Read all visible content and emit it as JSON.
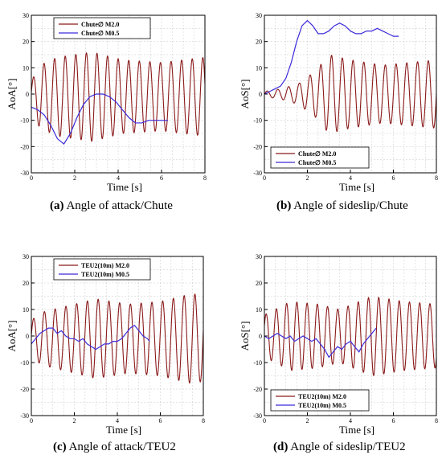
{
  "colors": {
    "red_series": "#8b1a1a",
    "blue_series": "#3b2bd9",
    "green_overlay": "#1a9a1a",
    "grid": "#c8c8c8",
    "axis": "#000000"
  },
  "chart_data": [
    {
      "id": "a",
      "type": "line",
      "caption_letter": "(a)",
      "caption_text": "Angle of attack/Chute",
      "xlabel": "Time [s]",
      "ylabel": "AoA[°]",
      "xlim": [
        0,
        8
      ],
      "ylim": [
        -30,
        30
      ],
      "xticks": [
        0,
        2,
        4,
        6,
        8
      ],
      "yticks": [
        -30,
        -20,
        -10,
        0,
        10,
        20,
        30
      ],
      "grid": true,
      "legend_position": "top-left",
      "series": [
        {
          "name": "Chute∅ M2.0",
          "color": "#8b1a1a",
          "kind": "oscillation",
          "t_end": 8.0,
          "freq": 2.05,
          "amp": [
            [
              0,
              6
            ],
            [
              0.4,
              12
            ],
            [
              1.2,
              15
            ],
            [
              2.8,
              17
            ],
            [
              4.2,
              14
            ],
            [
              6,
              13
            ],
            [
              8,
              15
            ]
          ],
          "offset": [
            [
              0,
              -1
            ],
            [
              8,
              -1
            ]
          ],
          "phase": 0.3
        },
        {
          "name": "Chute∅ M0.5",
          "color": "#3b2bd9",
          "kind": "points",
          "x": [
            0,
            0.3,
            0.6,
            0.9,
            1.2,
            1.5,
            1.8,
            2.1,
            2.4,
            2.7,
            3.0,
            3.3,
            3.6,
            3.9,
            4.2,
            4.5,
            4.8,
            5.1,
            5.4,
            5.7,
            6.0,
            6.3
          ],
          "y": [
            -5,
            -6,
            -8,
            -12,
            -17,
            -19,
            -15,
            -9,
            -4,
            -1,
            0,
            0,
            -1,
            -3,
            -6,
            -9,
            -11,
            -11,
            -10,
            -10,
            -10,
            -10
          ]
        }
      ]
    },
    {
      "id": "b",
      "type": "line",
      "caption_letter": "(b)",
      "caption_text": "Angle of sideslip/Chute",
      "xlabel": "Time [s]",
      "ylabel": "AoS[°]",
      "xlim": [
        0,
        8
      ],
      "ylim": [
        -30,
        30
      ],
      "xticks": [
        0,
        2,
        4,
        6,
        8
      ],
      "yticks": [
        -30,
        -20,
        -10,
        0,
        10,
        20,
        30
      ],
      "grid": true,
      "legend_position": "bottom-left",
      "series": [
        {
          "name": "Chute∅ M2.0",
          "color": "#8b1a1a",
          "kind": "oscillation",
          "t_end": 8.0,
          "freq": 2.0,
          "amp": [
            [
              0,
              1
            ],
            [
              0.8,
              2
            ],
            [
              1.6,
              4
            ],
            [
              2.4,
              9
            ],
            [
              3.0,
              15
            ],
            [
              4.0,
              13
            ],
            [
              5.5,
              11
            ],
            [
              8,
              13
            ]
          ],
          "offset": [
            [
              0,
              0
            ],
            [
              8,
              0
            ]
          ],
          "phase": 0.0
        },
        {
          "name": "Chute∅ M0.5",
          "color": "#3b2bd9",
          "kind": "points",
          "x": [
            0,
            0.25,
            0.5,
            0.75,
            1.0,
            1.25,
            1.5,
            1.75,
            2.0,
            2.25,
            2.5,
            2.75,
            3.0,
            3.25,
            3.5,
            3.75,
            4.0,
            4.25,
            4.5,
            4.75,
            5.0,
            5.25,
            5.5,
            5.75,
            6.0,
            6.25
          ],
          "y": [
            0,
            1,
            2,
            3,
            6,
            12,
            20,
            26,
            28,
            26,
            23,
            23,
            24,
            26,
            27,
            26,
            24,
            23,
            23,
            24,
            24,
            25,
            24,
            23,
            22,
            22
          ]
        }
      ]
    },
    {
      "id": "c",
      "type": "line",
      "caption_letter": "(c)",
      "caption_text": "Angle of attack/TEU2",
      "xlabel": "Time [s]",
      "ylabel": "AoA[°]",
      "xlim": [
        0,
        8
      ],
      "ylim": [
        -30,
        30
      ],
      "xticks": [
        0,
        2,
        4,
        6,
        8
      ],
      "yticks": [
        -30,
        -20,
        -10,
        0,
        10,
        20,
        30
      ],
      "grid": true,
      "legend_position": "top-left",
      "series": [
        {
          "name": "TEU2(10m) M2.0",
          "color": "#8b1a1a",
          "kind": "oscillation",
          "t_end": 8.0,
          "freq": 2.0,
          "amp": [
            [
              0,
              7
            ],
            [
              0.5,
              10
            ],
            [
              1.5,
              12
            ],
            [
              3,
              15
            ],
            [
              4.5,
              13
            ],
            [
              6,
              14
            ],
            [
              7.5,
              17
            ],
            [
              8,
              16
            ]
          ],
          "offset": [
            [
              0,
              -1
            ],
            [
              8,
              -1
            ]
          ],
          "phase": 0.2
        },
        {
          "name": "TEU2(10m) M0.5",
          "color": "#3b2bd9",
          "kind": "points",
          "x": [
            0,
            0.2,
            0.4,
            0.6,
            0.8,
            1.0,
            1.2,
            1.4,
            1.6,
            1.8,
            2.0,
            2.2,
            2.4,
            2.6,
            2.8,
            3.0,
            3.2,
            3.4,
            3.6,
            3.8,
            4.0,
            4.2,
            4.4,
            4.6,
            4.8,
            5.0,
            5.2,
            5.4,
            5.5
          ],
          "y": [
            -3,
            -1,
            1,
            2,
            3,
            3,
            1,
            2,
            0,
            -1,
            -1,
            -2,
            -1,
            -3,
            -4,
            -5,
            -4,
            -3,
            -3,
            -2,
            -2,
            -1,
            1,
            3,
            4,
            2,
            0,
            -1,
            -2
          ]
        }
      ]
    },
    {
      "id": "d",
      "type": "line",
      "caption_letter": "(d)",
      "caption_text": "Angle of sideslip/TEU2",
      "xlabel": "Time [s]",
      "ylabel": "AoS[°]",
      "xlim": [
        0,
        8
      ],
      "ylim": [
        -30,
        30
      ],
      "xticks": [
        0,
        2,
        4,
        6,
        8
      ],
      "yticks": [
        -30,
        -20,
        -10,
        0,
        10,
        20,
        30
      ],
      "grid": true,
      "legend_position": "bottom-left",
      "series": [
        {
          "name": "TEU2(10m) M2.0",
          "color": "#8b1a1a",
          "kind": "oscillation",
          "t_end": 8.0,
          "freq": 2.1,
          "amp": [
            [
              0,
              8
            ],
            [
              0.5,
              10
            ],
            [
              1.2,
              13
            ],
            [
              2.5,
              12
            ],
            [
              3.5,
              10
            ],
            [
              5.0,
              15
            ],
            [
              6.5,
              13
            ],
            [
              8,
              12
            ]
          ],
          "offset": [
            [
              0,
              0
            ],
            [
              8,
              0
            ]
          ],
          "phase": 0.5
        },
        {
          "name": "TEU2(10m) M0.5",
          "color": "#3b2bd9",
          "kind": "points",
          "x": [
            0,
            0.2,
            0.4,
            0.6,
            0.8,
            1.0,
            1.2,
            1.4,
            1.6,
            1.8,
            2.0,
            2.2,
            2.4,
            2.6,
            2.8,
            3.0,
            3.2,
            3.4,
            3.6,
            3.8,
            4.0,
            4.2,
            4.4,
            4.6,
            4.8,
            5.0,
            5.2
          ],
          "y": [
            0,
            -1,
            0,
            1,
            0,
            -1,
            0,
            -2,
            -1,
            0,
            -1,
            -2,
            -1,
            -3,
            -5,
            -8,
            -6,
            -4,
            -5,
            -3,
            -2,
            -4,
            -6,
            -3,
            -1,
            1,
            3
          ]
        }
      ]
    }
  ]
}
